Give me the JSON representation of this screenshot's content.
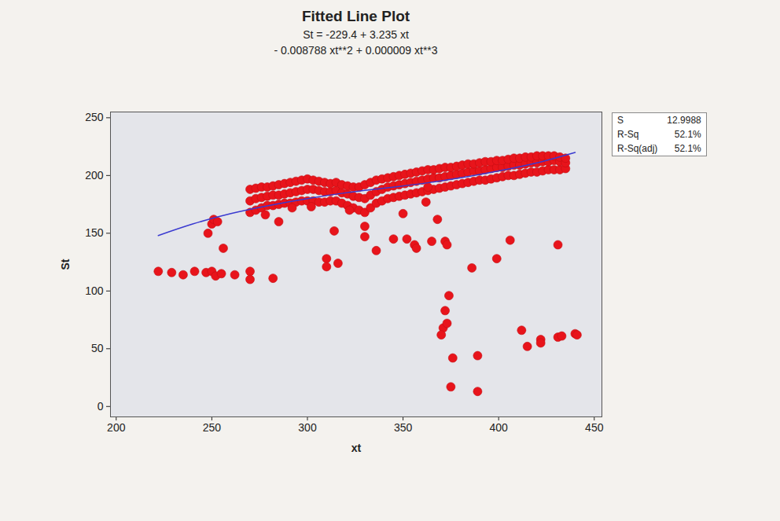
{
  "chart_data": {
    "type": "scatter",
    "title": "Fitted Line Plot",
    "subtitle": [
      "St = -229.4 + 3.235 xt",
      "- 0.008788 xt**2 + 0.000009 xt**3"
    ],
    "x_label": "xt",
    "y_label": "St",
    "color": "#e8141b",
    "marker": "circle",
    "grid": false,
    "xlim": [
      197,
      454
    ],
    "ylim": [
      -9,
      255
    ],
    "xticks": [
      200,
      250,
      300,
      350,
      400,
      450
    ],
    "yticks": [
      0,
      50,
      100,
      150,
      200,
      250
    ],
    "x": [
      270,
      270,
      270,
      273,
      273,
      273,
      276,
      276,
      276,
      279,
      279,
      279,
      282,
      282,
      282,
      285,
      285,
      285,
      288,
      288,
      288,
      291,
      291,
      291,
      294,
      294,
      294,
      297,
      297,
      297,
      300,
      300,
      300,
      303,
      303,
      303,
      306,
      306,
      306,
      309,
      309,
      309,
      312,
      312,
      312,
      315,
      315,
      315,
      318,
      318,
      318,
      321,
      321,
      321,
      324,
      324,
      324,
      327,
      327,
      327,
      330,
      330,
      330,
      333,
      333,
      333,
      336,
      336,
      336,
      339,
      339,
      339,
      342,
      342,
      342,
      345,
      345,
      345,
      348,
      348,
      348,
      351,
      351,
      351,
      354,
      354,
      354,
      357,
      357,
      357,
      360,
      360,
      360,
      363,
      363,
      363,
      366,
      366,
      366,
      369,
      369,
      369,
      372,
      372,
      372,
      375,
      375,
      375,
      378,
      378,
      378,
      381,
      381,
      381,
      384,
      384,
      384,
      387,
      387,
      387,
      390,
      390,
      390,
      393,
      393,
      393,
      396,
      396,
      396,
      399,
      399,
      399,
      402,
      402,
      402,
      405,
      405,
      405,
      408,
      408,
      408,
      411,
      411,
      411,
      414,
      414,
      414,
      417,
      417,
      417,
      420,
      420,
      420,
      423,
      423,
      423,
      426,
      426,
      426,
      429,
      429,
      429,
      432,
      432,
      432,
      435,
      435,
      435,
      222,
      229,
      235,
      241,
      247,
      250,
      252,
      255,
      262,
      270,
      270,
      282,
      248,
      250,
      251,
      253,
      256,
      310,
      310,
      316,
      314,
      330,
      330,
      336,
      352,
      356,
      357,
      345,
      365,
      372,
      373,
      368,
      386,
      399,
      406,
      431,
      374,
      372,
      371,
      370,
      373,
      376,
      375,
      389,
      389,
      412,
      415,
      422,
      422,
      431,
      433,
      440,
      441,
      362,
      350,
      322,
      285,
      278,
      292,
      302,
      363
    ],
    "values": [
      168,
      178,
      188,
      170,
      180,
      189,
      172,
      181,
      190,
      174,
      182,
      190,
      174,
      183,
      191,
      175,
      183,
      192,
      176,
      184,
      193,
      176,
      185,
      194,
      177,
      186,
      195,
      178,
      187,
      196,
      178,
      188,
      197,
      178,
      188,
      196,
      177,
      187,
      195,
      177,
      186,
      194,
      178,
      186,
      193,
      178,
      187,
      194,
      176,
      185,
      192,
      174,
      184,
      191,
      172,
      182,
      190,
      170,
      181,
      190,
      168,
      180,
      192,
      172,
      183,
      194,
      176,
      186,
      196,
      178,
      188,
      197,
      180,
      190,
      198,
      181,
      191,
      199,
      182,
      192,
      200,
      183,
      193,
      201,
      184,
      194,
      202,
      185,
      195,
      203,
      186,
      196,
      204,
      187,
      197,
      205,
      188,
      198,
      205,
      189,
      198,
      206,
      190,
      199,
      207,
      191,
      200,
      207,
      192,
      201,
      208,
      193,
      202,
      209,
      194,
      203,
      210,
      195,
      204,
      210,
      196,
      204,
      211,
      196,
      205,
      212,
      197,
      206,
      212,
      198,
      207,
      213,
      199,
      207,
      213,
      200,
      208,
      214,
      200,
      209,
      215,
      201,
      209,
      215,
      202,
      210,
      216,
      203,
      211,
      216,
      203,
      211,
      217,
      204,
      212,
      217,
      205,
      212,
      217,
      205,
      213,
      217,
      205,
      212,
      216,
      206,
      211,
      215,
      117,
      116,
      114,
      117,
      116,
      117,
      113,
      115,
      114,
      117,
      110,
      111,
      150,
      158,
      162,
      160,
      137,
      128,
      121,
      124,
      152,
      156,
      147,
      135,
      145,
      140,
      137,
      145,
      143,
      143,
      140,
      162,
      120,
      128,
      144,
      140,
      96,
      83,
      68,
      62,
      72,
      42,
      17,
      13,
      44,
      66,
      52,
      58,
      55,
      60,
      61,
      63,
      62,
      177,
      167,
      170,
      160,
      166,
      172,
      173,
      190
    ],
    "fit": {
      "type": "line",
      "color": "#3a3ad0",
      "x": [
        222,
        240,
        260,
        280,
        300,
        320,
        340,
        360,
        380,
        400,
        420,
        440
      ],
      "values": [
        148,
        158,
        167,
        174,
        180,
        185,
        189,
        193,
        198,
        204,
        211,
        220
      ]
    },
    "stats": [
      {
        "label": "S",
        "value": "12.9988"
      },
      {
        "label": "R-Sq",
        "value": "52.1%"
      },
      {
        "label": "R-Sq(adj)",
        "value": "52.1%"
      }
    ]
  }
}
